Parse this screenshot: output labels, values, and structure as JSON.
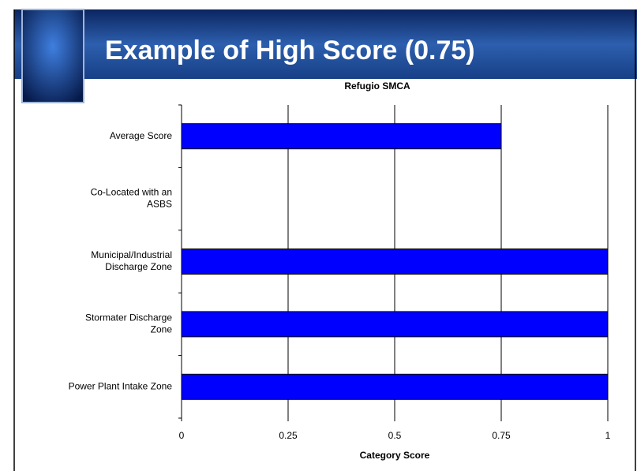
{
  "slide": {
    "title": "Example of High Score (0.75)"
  },
  "chart_data": {
    "type": "barh",
    "title": "Refugio SMCA",
    "categories": [
      "Average Score",
      "Co-Located with an\nASBS",
      "Municipal/Industrial\nDischarge Zone",
      "Stormater Discharge\nZone",
      "Power Plant Intake Zone"
    ],
    "values": [
      0.75,
      0,
      1,
      1,
      1
    ],
    "color": "#0000ff",
    "xlim": [
      0,
      1
    ],
    "xticks": [
      0,
      0.25,
      0.5,
      0.75,
      1
    ],
    "grid": true,
    "xlabel": "Category Score"
  }
}
